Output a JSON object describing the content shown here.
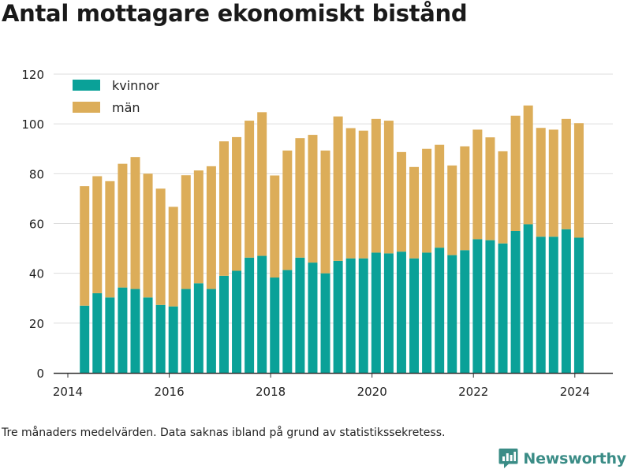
{
  "title": "Antal mottagare ekonomiskt bistånd",
  "footnote": "Tre månaders medelvärden. Data saknas ibland på grund av statistikssekretess.",
  "brand": "Newsworthy",
  "colors": {
    "kvinnor": "#0aa198",
    "man": "#dcad59",
    "grid": "#dddddd",
    "axis": "#333333",
    "brand": "#3a8c86"
  },
  "chart_data": {
    "type": "bar",
    "stacked": true,
    "title": "Antal mottagare ekonomiskt bistånd",
    "xlabel": "",
    "ylabel": "",
    "ylim": [
      0,
      120
    ],
    "yticks": [
      "0",
      "20",
      "40",
      "60",
      "80",
      "100",
      "120"
    ],
    "xlim": [
      2013.72,
      2024.75
    ],
    "xticks": [
      "2014",
      "2016",
      "2018",
      "2020",
      "2022",
      "2024"
    ],
    "grid": true,
    "legend": "top-left",
    "x": [
      2014.33,
      2014.58,
      2014.83,
      2015.08,
      2015.33,
      2015.58,
      2015.83,
      2016.08,
      2016.33,
      2016.58,
      2016.83,
      2017.08,
      2017.33,
      2017.58,
      2017.83,
      2018.08,
      2018.33,
      2018.58,
      2018.83,
      2019.08,
      2019.33,
      2019.58,
      2019.83,
      2020.08,
      2020.33,
      2020.58,
      2020.83,
      2021.08,
      2021.33,
      2021.58,
      2021.83,
      2022.08,
      2022.33,
      2022.58,
      2022.83,
      2023.08,
      2023.33,
      2023.58,
      2023.83,
      2024.08
    ],
    "series": [
      {
        "name": "kvinnor",
        "values": [
          27,
          32,
          30.3,
          34.3,
          33.7,
          30.3,
          27.3,
          26.7,
          33.7,
          36,
          33.7,
          39,
          41,
          46.3,
          47,
          38.3,
          41.3,
          46.3,
          44.3,
          40,
          45,
          46,
          46,
          48.3,
          48,
          48.7,
          46,
          48.3,
          50.3,
          47.3,
          49.3,
          53.7,
          53.3,
          52,
          57,
          59.7,
          54.7,
          54.7,
          57.7,
          54.3
        ]
      },
      {
        "name": "män",
        "values": [
          48,
          47,
          46.7,
          49.7,
          53,
          49.7,
          46.7,
          40,
          45.7,
          45.3,
          49.3,
          54,
          53.7,
          55,
          57.7,
          41,
          48,
          48,
          51.3,
          49.3,
          58,
          52.3,
          51.3,
          53.7,
          53.3,
          40,
          36.7,
          41.7,
          41.3,
          36,
          41.7,
          44,
          41.3,
          37,
          46.3,
          47.7,
          43.7,
          43,
          44.3,
          46
        ]
      }
    ]
  }
}
